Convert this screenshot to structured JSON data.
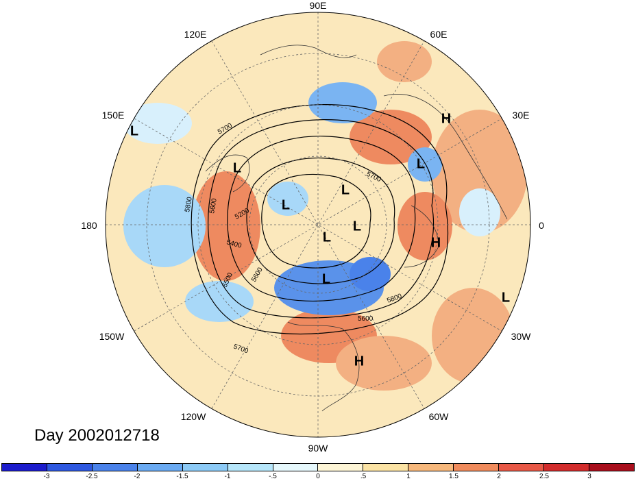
{
  "title": "Day 2002012718",
  "longitude_labels": [
    {
      "text": "90E",
      "pos": "top"
    },
    {
      "text": "120E",
      "pos": "upper-left"
    },
    {
      "text": "60E",
      "pos": "upper-right"
    },
    {
      "text": "150E",
      "pos": "left-upper"
    },
    {
      "text": "30E",
      "pos": "right-upper"
    },
    {
      "text": "180",
      "pos": "left"
    },
    {
      "text": "0",
      "pos": "right"
    },
    {
      "text": "150W",
      "pos": "left-lower"
    },
    {
      "text": "30W",
      "pos": "right-lower"
    },
    {
      "text": "120W",
      "pos": "lower-left"
    },
    {
      "text": "60W",
      "pos": "lower-right"
    },
    {
      "text": "90W",
      "pos": "bottom"
    }
  ],
  "pressure_centers": [
    {
      "type": "L"
    },
    {
      "type": "H"
    },
    {
      "type": "L"
    },
    {
      "type": "L"
    },
    {
      "type": "L"
    },
    {
      "type": "L"
    },
    {
      "type": "L"
    },
    {
      "type": "L"
    },
    {
      "type": "H"
    },
    {
      "type": "L"
    },
    {
      "type": "L"
    },
    {
      "type": "H"
    }
  ],
  "contour_labels": [
    "5700",
    "5800",
    "5600",
    "5200",
    "5400",
    "5500",
    "5600",
    "5700",
    "5800",
    "5600",
    "5700",
    "5800"
  ],
  "colorbar": {
    "ticks": [
      "-3",
      "-2.5",
      "-2",
      "-1.5",
      "-1",
      "-.5",
      "0",
      ".5",
      "1",
      "1.5",
      "2",
      "2.5",
      "3"
    ],
    "colors": [
      "#1c1ccc",
      "#2e58e0",
      "#4a82ea",
      "#6aaaf2",
      "#8ccaf6",
      "#b6e6fa",
      "#e6f8fc",
      "#fdf5d6",
      "#fbe3a4",
      "#f7b87c",
      "#f08b5c",
      "#e85846",
      "#d22c2c",
      "#a80e1c"
    ]
  }
}
